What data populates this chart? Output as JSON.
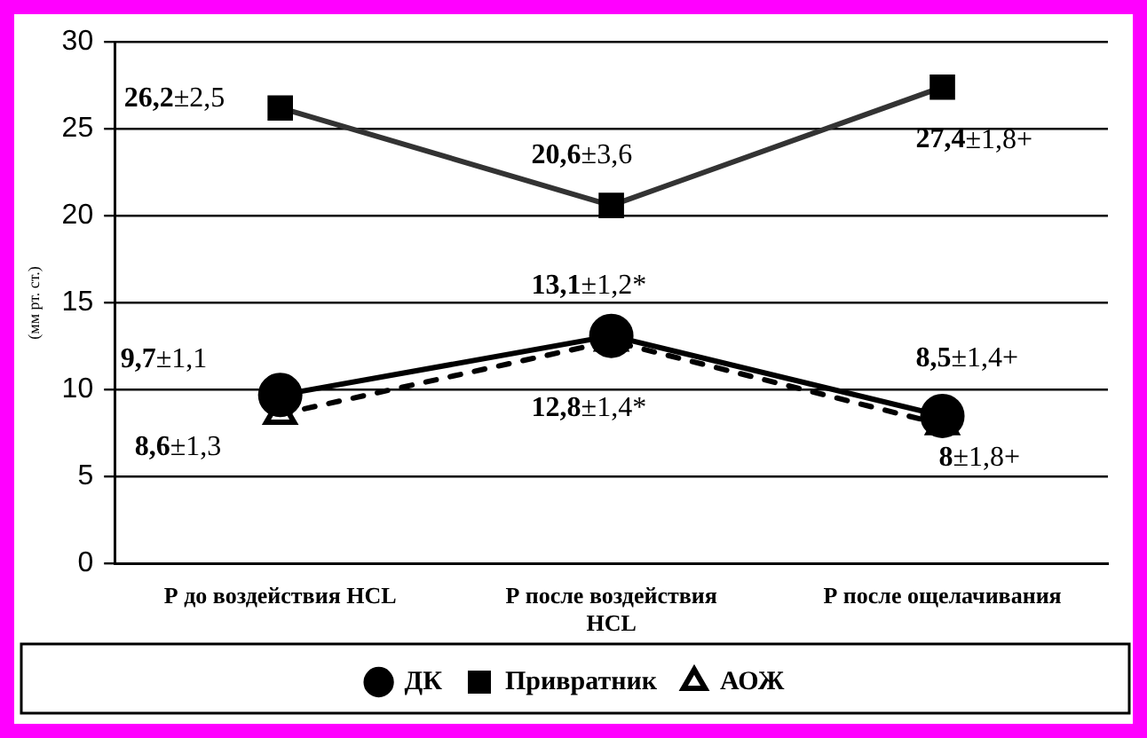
{
  "chart_data": {
    "type": "line",
    "ylabel": "(мм рт. ст.)",
    "categories": [
      "Р до воздействия HCL",
      "Р после воздействия HCL",
      "Р после ощелачивания"
    ],
    "series": [
      {
        "name": "ДК",
        "color": "#000000",
        "marker": "circle",
        "line_style": "solid",
        "values": [
          9.7,
          13.1,
          8.5
        ],
        "value_labels": [
          "9,7±1,1",
          "13,1±1,2*",
          "8,5±1,4+"
        ]
      },
      {
        "name": "Привратник",
        "color": "#333333",
        "marker": "square",
        "line_style": "solid",
        "values": [
          26.2,
          20.6,
          27.4
        ],
        "value_labels": [
          "26,2±2,5",
          "20,6±3,6",
          "27,4±1,8+"
        ]
      },
      {
        "name": "АОЖ",
        "color": "#000000",
        "marker": "triangle",
        "line_style": "dashed",
        "values": [
          8.6,
          12.8,
          8
        ],
        "value_labels": [
          "8,6±1,3",
          "12,8±1,4*",
          "8±1,8+"
        ]
      }
    ],
    "ylim": [
      0,
      30
    ],
    "yticks": [
      0,
      5,
      10,
      15,
      20,
      25,
      30
    ],
    "grid": "y",
    "legend": "bottom"
  }
}
